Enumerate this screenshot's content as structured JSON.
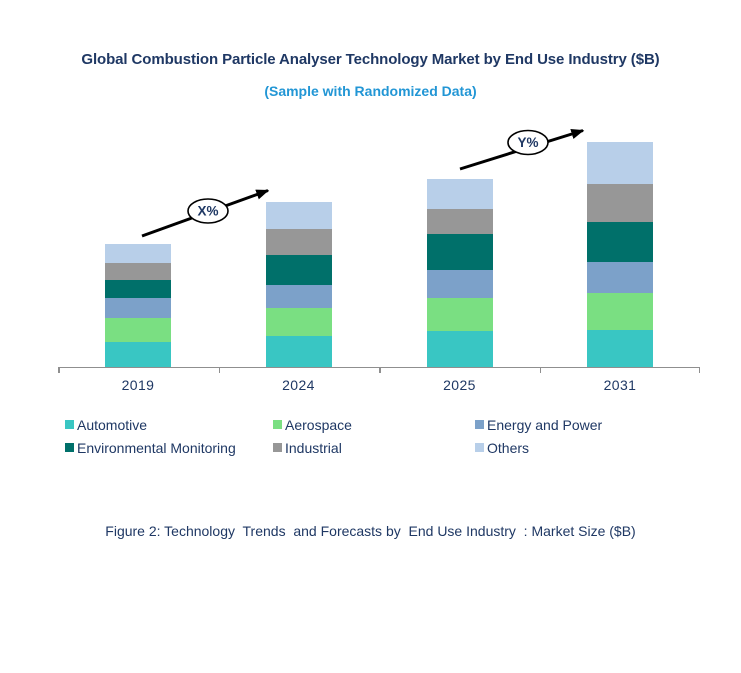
{
  "header": {
    "title": "Global Combustion Particle Analyser Technology Market by End Use Industry ($B)",
    "subtitle": "(Sample with Randomized Data)",
    "title_color": "#1F3864",
    "subtitle_color": "#2296D5"
  },
  "chart_data": {
    "type": "bar",
    "stacked": true,
    "title": "Global Combustion Particle Analyser Technology Market by End Use Industry ($B)",
    "subtitle": "(Sample with Randomized Data)",
    "categories": [
      "2019",
      "2024",
      "2025",
      "2031"
    ],
    "series": [
      {
        "name": "Automotive",
        "color": "#39C6C3",
        "values": [
          25,
          31,
          36,
          37
        ]
      },
      {
        "name": "Aerospace",
        "color": "#7ADF82",
        "values": [
          24,
          28,
          33,
          37
        ]
      },
      {
        "name": "Energy and Power",
        "color": "#7CA1C9",
        "values": [
          20,
          23,
          28,
          31
        ]
      },
      {
        "name": "Environmental Monitoring",
        "color": "#00706A",
        "values": [
          18,
          30,
          36,
          40
        ]
      },
      {
        "name": "Industrial",
        "color": "#979797",
        "values": [
          17,
          26,
          25,
          38
        ]
      },
      {
        "name": "Others",
        "color": "#B8CFE9",
        "values": [
          19,
          27,
          30,
          42
        ]
      }
    ],
    "totals": [
      123,
      165,
      188,
      225
    ],
    "xlabel": "",
    "ylabel": "",
    "ylim": [
      0,
      240
    ],
    "y_axis_visible": false,
    "gridlines": false,
    "legend_position": "bottom",
    "annotations": [
      {
        "label": "X%",
        "between": [
          "2019",
          "2024"
        ]
      },
      {
        "label": "Y%",
        "between": [
          "2025",
          "2031"
        ]
      }
    ],
    "axis_color": "#8F8F8F",
    "label_color": "#1F3864"
  },
  "caption": {
    "text": "Figure 2: Technology  Trends  and Forecasts by  End Use Industry  : Market Size ($B)"
  }
}
